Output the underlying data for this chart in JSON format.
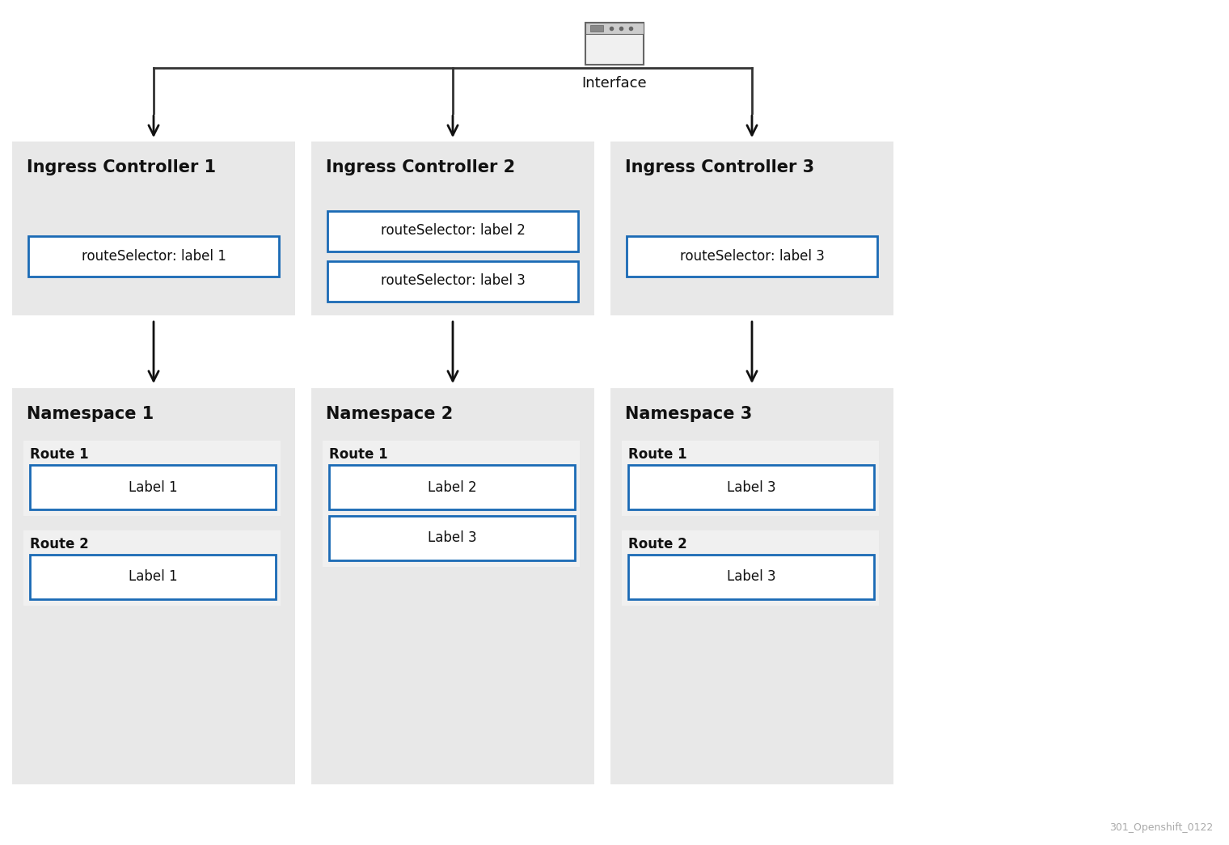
{
  "bg_color": "#ffffff",
  "panel_bg": "#e8e8e8",
  "route_bg": "#f5f5f5",
  "box_bg": "#ffffff",
  "box_edge": "#1a6ab5",
  "text_color": "#111111",
  "arrow_color": "#111111",
  "line_color": "#333333",
  "watermark": "301_Openshift_0122",
  "interface_label": "Interface",
  "ingress_controllers": [
    "Ingress Controller 1",
    "Ingress Controller 2",
    "Ingress Controller 3"
  ],
  "ingress_selectors": [
    [
      "routeSelector: label 1"
    ],
    [
      "routeSelector: label 2",
      "routeSelector: label 3"
    ],
    [
      "routeSelector: label 3"
    ]
  ],
  "namespaces": [
    "Namespace 1",
    "Namespace 2",
    "Namespace 3"
  ],
  "routes": [
    [
      {
        "name": "Route 1",
        "labels": [
          "Label 1"
        ]
      },
      {
        "name": "Route 2",
        "labels": [
          "Label 1"
        ]
      }
    ],
    [
      {
        "name": "Route 1",
        "labels": [
          "Label 2",
          "Label 3"
        ]
      }
    ],
    [
      {
        "name": "Route 1",
        "labels": [
          "Label 3"
        ]
      },
      {
        "name": "Route 2",
        "labels": [
          "Label 3"
        ]
      }
    ]
  ]
}
